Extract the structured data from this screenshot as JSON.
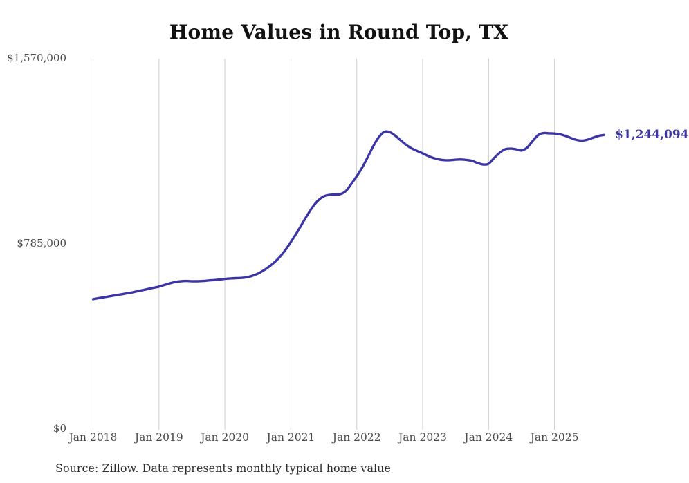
{
  "chart_data": {
    "type": "line",
    "title": "Home Values in Round Top, TX",
    "source_note": "Source: Zillow. Data represents monthly typical home value",
    "end_label": "$1,244,094",
    "last_value": 1244094,
    "line_color": "#3b35a7",
    "grid": "vertical-only",
    "gridline_color": "#cccccc",
    "axis_text_color": "#4b4b4b",
    "ylim": [
      0,
      1570000
    ],
    "y_ticks": [
      {
        "label": "$1,570,000",
        "value": 1570000
      },
      {
        "label": "$785,000",
        "value": 785000
      },
      {
        "label": "$0",
        "value": 0
      }
    ],
    "x_ticks": [
      "Jan 2018",
      "Jan 2019",
      "Jan 2020",
      "Jan 2021",
      "Jan 2022",
      "Jan 2023",
      "Jan 2024",
      "Jan 2025"
    ],
    "series": [
      {
        "name": "Monthly typical home value",
        "start_month": "Jan 2018",
        "frequency": "monthly",
        "values": [
          548000,
          552000,
          556000,
          560000,
          564000,
          568000,
          572000,
          576000,
          581000,
          586000,
          591000,
          596000,
          601000,
          608000,
          615000,
          621000,
          624000,
          625000,
          624000,
          624000,
          625000,
          627000,
          629000,
          631000,
          634000,
          636000,
          637000,
          638000,
          641000,
          647000,
          656000,
          669000,
          685000,
          704000,
          727000,
          756000,
          790000,
          826000,
          865000,
          904000,
          940000,
          967000,
          984000,
          990000,
          991000,
          993000,
          1006000,
          1036000,
          1069000,
          1106000,
          1150000,
          1196000,
          1234000,
          1257000,
          1256000,
          1241000,
          1221000,
          1202000,
          1187000,
          1176000,
          1166000,
          1155000,
          1146000,
          1140000,
          1137000,
          1137000,
          1139000,
          1140000,
          1138000,
          1134000,
          1125000,
          1119000,
          1122000,
          1146000,
          1168000,
          1183000,
          1186000,
          1183000,
          1178000,
          1190000,
          1218000,
          1243000,
          1252000,
          1251000,
          1250000,
          1247000,
          1240000,
          1231000,
          1223000,
          1220000,
          1224000,
          1232000,
          1240000,
          1244094
        ]
      }
    ]
  }
}
